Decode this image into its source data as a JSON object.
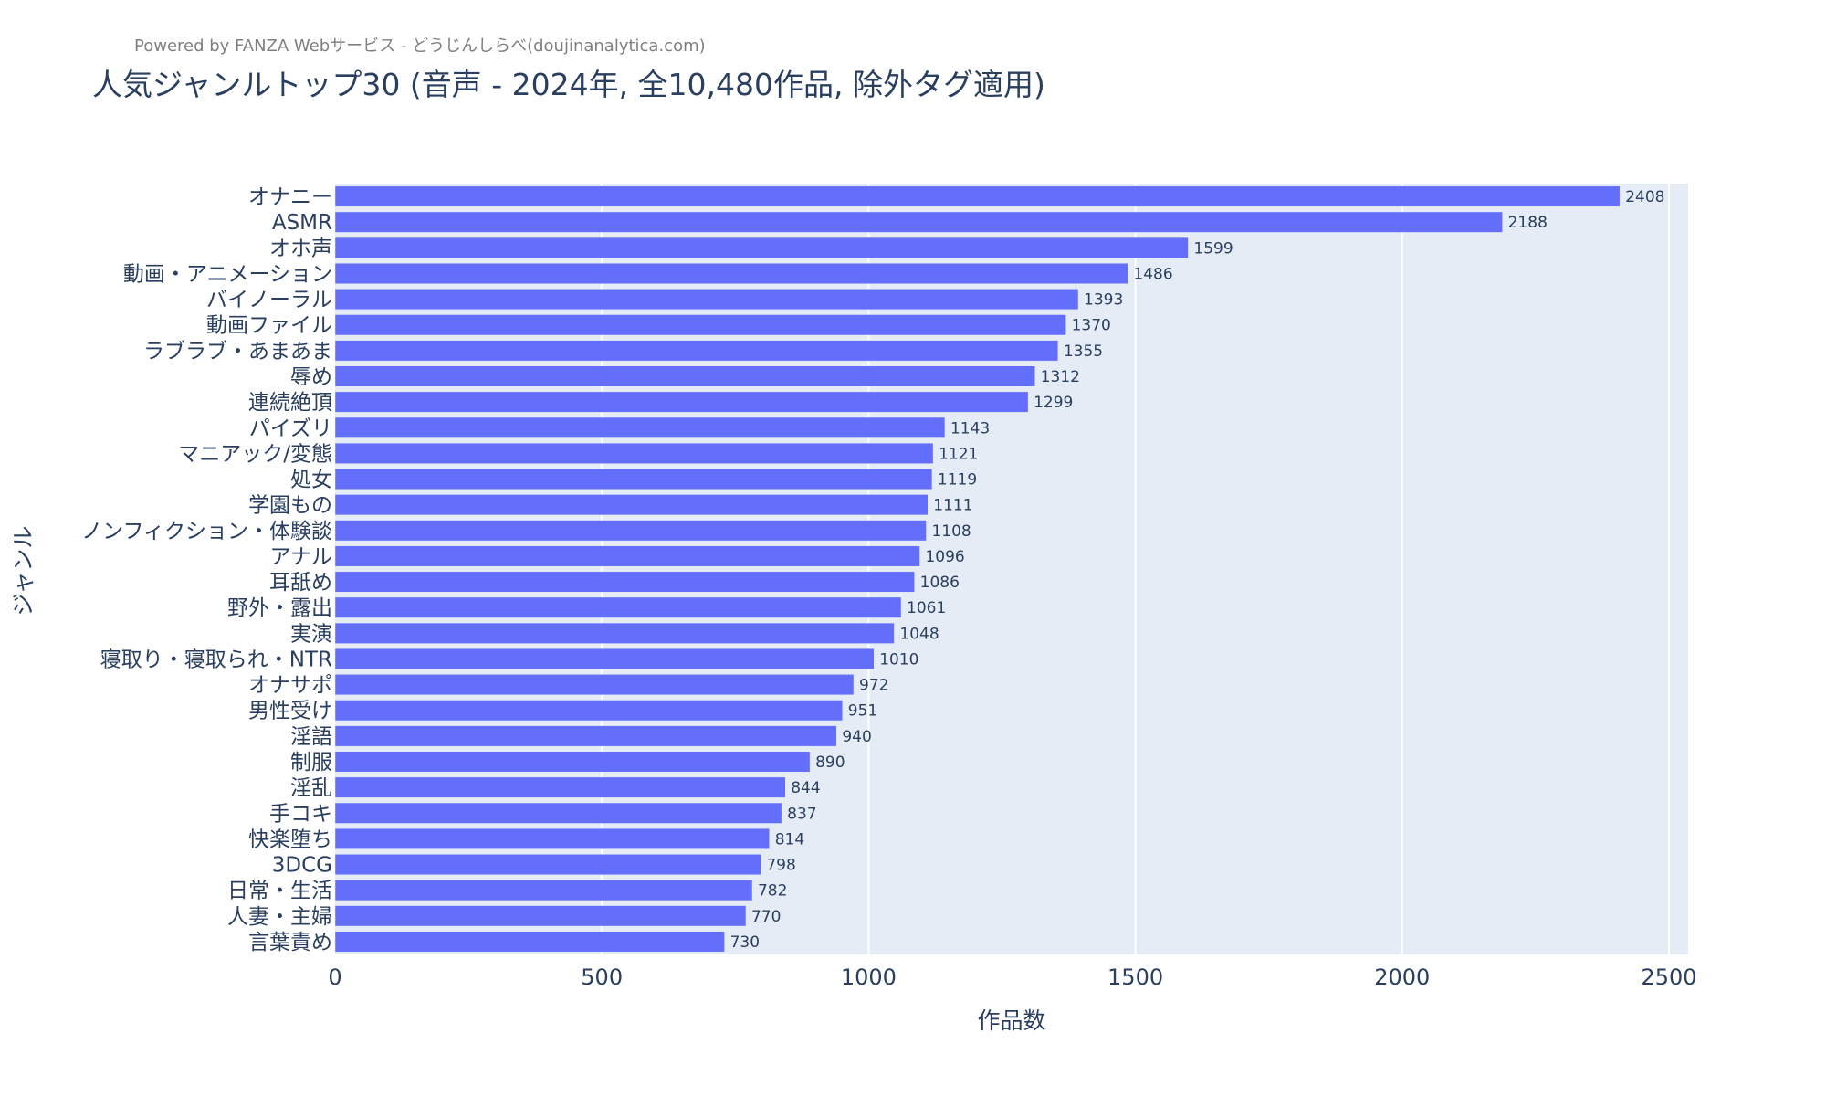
{
  "header": {
    "powered_by": "Powered by FANZA Webサービス - どうじんしらべ(doujinanalytica.com)"
  },
  "chart_data": {
    "type": "bar",
    "orientation": "horizontal",
    "title": "人気ジャンルトップ30 (音声 - 2024年, 全10,480作品, 除外タグ適用)",
    "xlabel": "作品数",
    "ylabel": "ジャンル",
    "xlim": [
      0,
      2536
    ],
    "xticks": [
      0,
      500,
      1000,
      1500,
      2000,
      2500
    ],
    "grid": true,
    "bar_color": "#636efa",
    "plot_bg": "#e5ecf6",
    "categories": [
      "オナニー",
      "ASMR",
      "オホ声",
      "動画・アニメーション",
      "バイノーラル",
      "動画ファイル",
      "ラブラブ・あまあま",
      "辱め",
      "連続絶頂",
      "パイズリ",
      "マニアック/変態",
      "処女",
      "学園もの",
      "ノンフィクション・体験談",
      "アナル",
      "耳舐め",
      "野外・露出",
      "実演",
      "寝取り・寝取られ・NTR",
      "オナサポ",
      "男性受け",
      "淫語",
      "制服",
      "淫乱",
      "手コキ",
      "快楽堕ち",
      "3DCG",
      "日常・生活",
      "人妻・主婦",
      "言葉責め"
    ],
    "values": [
      2408,
      2188,
      1599,
      1486,
      1393,
      1370,
      1355,
      1312,
      1299,
      1143,
      1121,
      1119,
      1111,
      1108,
      1096,
      1086,
      1061,
      1048,
      1010,
      972,
      951,
      940,
      890,
      844,
      837,
      814,
      798,
      782,
      770,
      730
    ]
  }
}
